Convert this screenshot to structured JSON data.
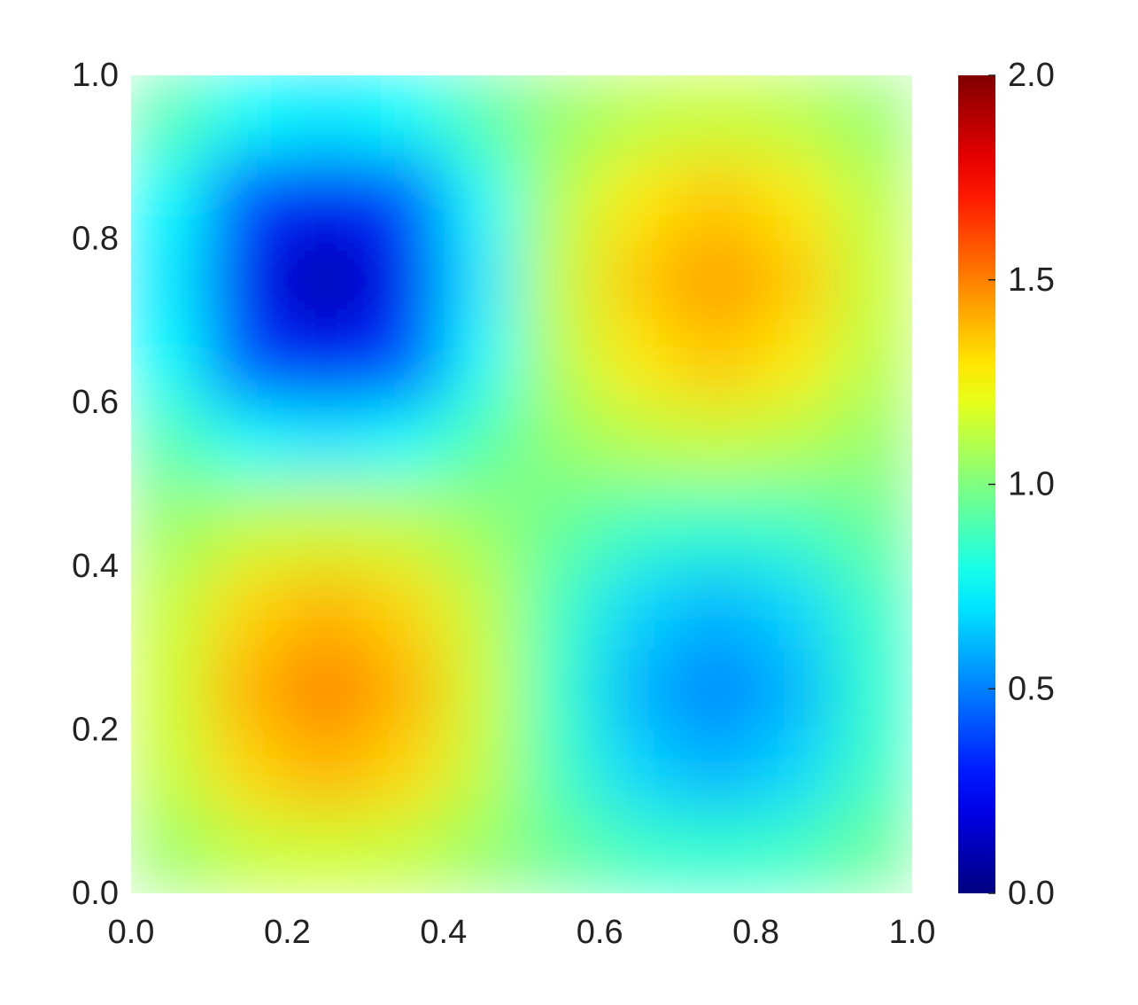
{
  "chart_data": {
    "type": "heatmap",
    "colormap": "jet",
    "x": [
      0.05,
      0.15,
      0.25,
      0.35,
      0.45,
      0.55,
      0.65,
      0.75,
      0.85,
      0.95
    ],
    "y": [
      0.05,
      0.15,
      0.25,
      0.35,
      0.45,
      0.55,
      0.65,
      0.75,
      0.85,
      0.95
    ],
    "values": [
      [
        1.05,
        1.13,
        1.15,
        1.13,
        1.05,
        0.95,
        0.87,
        0.85,
        0.87,
        0.95
      ],
      [
        1.13,
        1.33,
        1.4,
        1.33,
        1.13,
        0.87,
        0.67,
        0.6,
        0.67,
        0.87
      ],
      [
        1.15,
        1.4,
        1.5,
        1.4,
        1.15,
        0.85,
        0.6,
        0.5,
        0.6,
        0.85
      ],
      [
        1.13,
        1.33,
        1.4,
        1.33,
        1.13,
        0.87,
        0.67,
        0.6,
        0.67,
        0.87
      ],
      [
        1.05,
        1.13,
        1.15,
        1.13,
        1.05,
        0.95,
        0.87,
        0.85,
        0.87,
        0.95
      ],
      [
        0.91,
        0.76,
        0.71,
        0.76,
        0.91,
        1.04,
        1.11,
        1.14,
        1.11,
        1.04
      ],
      [
        0.76,
        0.38,
        0.23,
        0.38,
        0.76,
        1.11,
        1.29,
        1.36,
        1.29,
        1.11
      ],
      [
        0.71,
        0.23,
        0.05,
        0.23,
        0.71,
        1.14,
        1.36,
        1.45,
        1.36,
        1.14
      ],
      [
        0.76,
        0.38,
        0.23,
        0.38,
        0.76,
        1.11,
        1.29,
        1.36,
        1.29,
        1.11
      ],
      [
        0.91,
        0.76,
        0.71,
        0.76,
        0.91,
        1.04,
        1.11,
        1.14,
        1.11,
        1.04
      ]
    ],
    "xlim": [
      0,
      1
    ],
    "ylim": [
      0,
      1
    ],
    "xticks": [
      {
        "value": 0,
        "label": "0.0"
      },
      0.2,
      0.4,
      0.6,
      0.8,
      {
        "value": 1,
        "label": "1.0"
      }
    ],
    "yticks": [
      {
        "value": 0,
        "label": "0.0"
      },
      0.2,
      0.4,
      0.6,
      0.8,
      {
        "value": 1,
        "label": "1.0"
      }
    ],
    "clim": [
      0,
      2
    ],
    "cticks": [
      {
        "value": 0,
        "label": "0.0"
      },
      0.5,
      {
        "value": 1,
        "label": "1.0"
      },
      1.5,
      {
        "value": 2,
        "label": "2.0"
      }
    ]
  }
}
